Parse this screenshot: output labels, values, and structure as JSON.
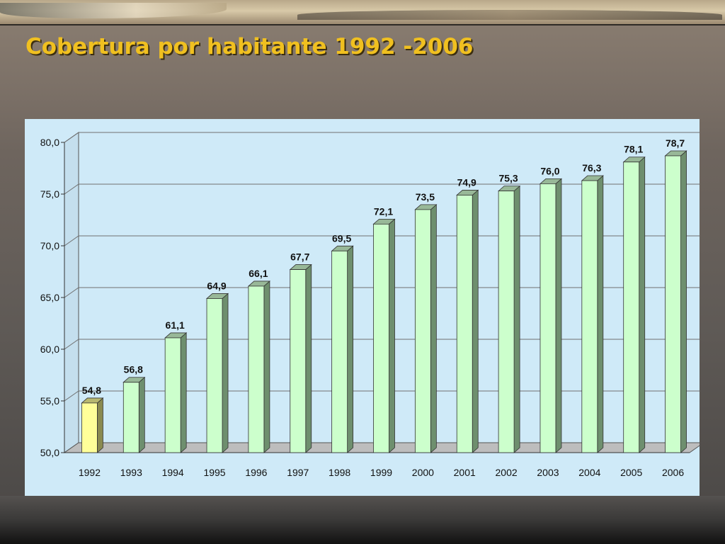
{
  "slide": {
    "title": "Cobertura por habitante 1992 -2006"
  },
  "colors": {
    "title": "#F0C020",
    "panel_bg": "#CFEAF8",
    "bar_default": "#CCFFCC",
    "bar_highlight": "#FFFF99"
  },
  "chart_data": {
    "type": "bar",
    "title": "",
    "xlabel": "",
    "ylabel": "",
    "categories": [
      "1992",
      "1993",
      "1994",
      "1995",
      "1996",
      "1997",
      "1998",
      "1999",
      "2000",
      "2001",
      "2002",
      "2003",
      "2004",
      "2005",
      "2006"
    ],
    "values": [
      54.8,
      56.8,
      61.1,
      64.9,
      66.1,
      67.7,
      69.5,
      72.1,
      73.5,
      74.9,
      75.3,
      76.0,
      76.3,
      78.1,
      78.7
    ],
    "data_labels": [
      "54,8",
      "56,8",
      "61,1",
      "64,9",
      "66,1",
      "67,7",
      "69,5",
      "72,1",
      "73,5",
      "74,9",
      "75,3",
      "76,0",
      "76,3",
      "78,1",
      "78,7"
    ],
    "ylim": [
      50,
      80
    ],
    "yticks": [
      50,
      55,
      60,
      65,
      70,
      75,
      80
    ],
    "ytick_labels": [
      "50,0",
      "55,0",
      "60,0",
      "65,0",
      "70,0",
      "75,0",
      "80,0"
    ],
    "highlight_category": "1992",
    "grid": true,
    "legend": false,
    "style": "3d-column"
  }
}
